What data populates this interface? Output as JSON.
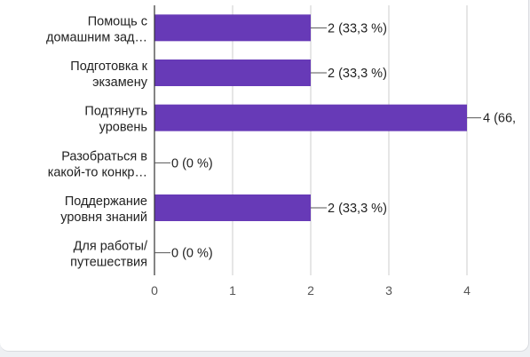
{
  "chart_data": {
    "type": "bar",
    "orientation": "horizontal",
    "categories": [
      [
        "Помощь с",
        "домашним зад…"
      ],
      [
        "Подготовка к",
        "экзамену"
      ],
      [
        "Подтянуть",
        "уровень"
      ],
      [
        "Разобраться в",
        "какой-то конкр…"
      ],
      [
        "Поддержание",
        "уровня знаний"
      ],
      [
        "Для работы/",
        "путешествия"
      ]
    ],
    "values": [
      2,
      2,
      4,
      0,
      2,
      0
    ],
    "data_labels": [
      "2 (33,3 %)",
      "2 (33,3 %)",
      "4 (66,",
      "0 (0 %)",
      "2 (33,3 %)",
      "0 (0 %)"
    ],
    "xticks": [
      "0",
      "1",
      "2",
      "3",
      "4"
    ],
    "xlim": [
      0,
      4
    ],
    "grid": true,
    "bar_color": "#673ab7"
  }
}
